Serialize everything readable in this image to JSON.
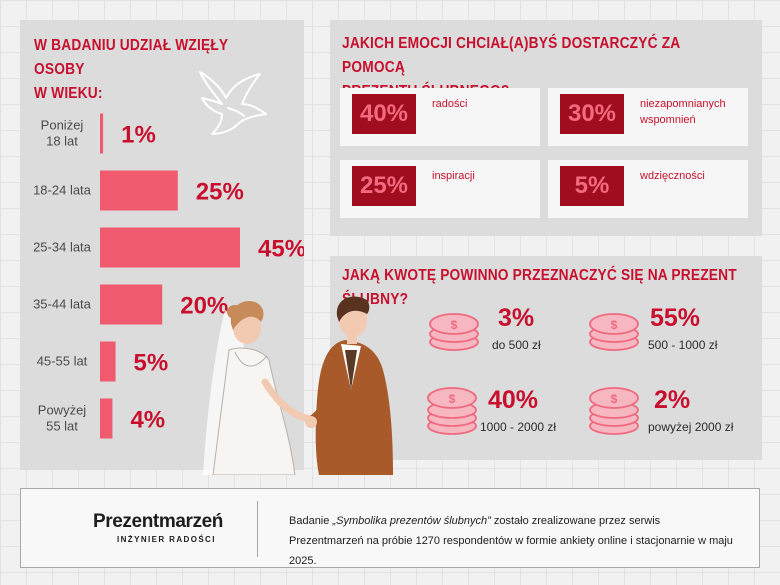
{
  "age_panel": {
    "title_line1": "W badaniu udział wzięły osoby",
    "title_line2": "w wieku:"
  },
  "emotions_panel": {
    "title_line1": "Jakich emocji chciał(a)byś dostarczyć za pomocą",
    "title_line2": "prezentu ślubnego?",
    "items": [
      {
        "value": "40%",
        "label": "radości"
      },
      {
        "value": "30%",
        "label_line1": "niezapomnianych",
        "label_line2": "wspomnień"
      },
      {
        "value": "25%",
        "label": "inspiracji"
      },
      {
        "value": "5%",
        "label": "wdzięczności"
      }
    ]
  },
  "amount_panel": {
    "title": "Jaką kwotę powinno przeznaczyć się na prezent ślubny?",
    "items": [
      {
        "value": "3%",
        "range": "do 500 zł"
      },
      {
        "value": "55%",
        "range": "500 - 1000 zł"
      },
      {
        "value": "40%",
        "range": "1000 - 2000 zł"
      },
      {
        "value": "2%",
        "range": "powyżej 2000 zł"
      }
    ]
  },
  "footer": {
    "logo": "Prezentmarzeń",
    "tagline": "INŻYNIER RADOŚCI",
    "note_prefix": "Badanie ",
    "note_title": "„Symbolika prezentów ślubnych”",
    "note_suffix": " zostało zrealizowane przez serwis",
    "note_line2": "Prezentmarzeń na próbie 1270 respondentów w formie ankiety online i stacjonarnie w maju 2025."
  },
  "colors": {
    "accent": "#c8102e",
    "bar": "#f05a6e",
    "dark_box": "#a00d1f",
    "panel": "#dcdcdc"
  },
  "icons": [
    "dove-icon",
    "coin-stack-icon",
    "couple-illustration"
  ],
  "chart_data": {
    "type": "bar",
    "orientation": "horizontal",
    "categories": [
      [
        "Poniżej",
        "18 lat"
      ],
      [
        "18-24 lata"
      ],
      [
        "25-34 lata"
      ],
      [
        "35-44 lata"
      ],
      [
        "45-55 lat"
      ],
      [
        "Powyżej",
        "55 lat"
      ]
    ],
    "values": [
      1,
      25,
      45,
      20,
      5,
      4
    ],
    "value_labels": [
      "1%",
      "25%",
      "45%",
      "20%",
      "5%",
      "4%"
    ],
    "unit": "%",
    "xlim": [
      0,
      45
    ]
  }
}
